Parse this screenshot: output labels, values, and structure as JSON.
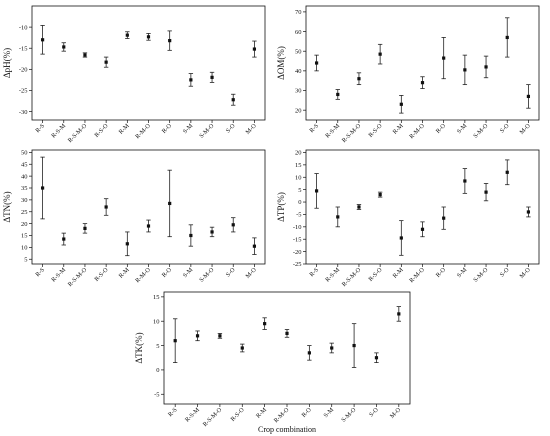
{
  "chart_data": [
    {
      "type": "scatter",
      "ylabel": "ΔpH(%)",
      "xlabel": "",
      "categories": [
        "R-S",
        "R-S-M",
        "R-S-M-O",
        "R-S-O",
        "R-M",
        "R-M-O",
        "R-O",
        "S-M",
        "S-M-O",
        "S-O",
        "M-O"
      ],
      "ylim": [
        -32,
        -5
      ],
      "yticks": [
        -30,
        -25,
        -20,
        -15,
        -10
      ],
      "grid": false,
      "series": [
        {
          "values": [
            -13.0,
            -14.7,
            -16.6,
            -18.3,
            -11.9,
            -12.3,
            -13.2,
            -22.5,
            -21.9,
            -27.2,
            -15.2
          ],
          "err": [
            3.4,
            1.0,
            0.5,
            1.2,
            0.8,
            0.8,
            2.3,
            1.5,
            1.2,
            1.3,
            1.9
          ]
        }
      ]
    },
    {
      "type": "scatter",
      "ylabel": "ΔOM(%)",
      "xlabel": "",
      "categories": [
        "R-S",
        "R-S-M",
        "R-S-M-O",
        "R-S-O",
        "R-M",
        "R-M-O",
        "R-O",
        "S-M",
        "S-M-O",
        "S-O",
        "M-O"
      ],
      "ylim": [
        15,
        73
      ],
      "yticks": [
        20,
        30,
        40,
        50,
        60,
        70
      ],
      "grid": false,
      "series": [
        {
          "values": [
            44.0,
            28.0,
            36.0,
            48.5,
            23.0,
            34.0,
            46.5,
            40.5,
            42.0,
            57.0,
            27.0
          ],
          "err": [
            4.0,
            2.5,
            3.0,
            5.0,
            4.5,
            3.0,
            10.5,
            7.5,
            5.5,
            10.0,
            6.0
          ]
        }
      ]
    },
    {
      "type": "scatter",
      "ylabel": "ΔTN(%)",
      "xlabel": "",
      "categories": [
        "R-S",
        "R-S-M",
        "R-S-M-O",
        "R-S-O",
        "R-M",
        "R-M-O",
        "R-O",
        "S-M",
        "S-M-O",
        "S-O",
        "M-O"
      ],
      "ylim": [
        3,
        51
      ],
      "yticks": [
        5,
        10,
        15,
        20,
        25,
        30,
        35,
        40,
        45,
        50
      ],
      "grid": false,
      "series": [
        {
          "values": [
            35.0,
            13.5,
            18.0,
            27.0,
            11.5,
            19.0,
            28.5,
            15.0,
            16.5,
            19.5,
            10.5
          ],
          "err": [
            13.0,
            2.5,
            2.0,
            3.5,
            5.0,
            2.5,
            14.0,
            4.5,
            2.0,
            3.0,
            3.5
          ]
        }
      ]
    },
    {
      "type": "scatter",
      "ylabel": "ΔTP(%)",
      "xlabel": "",
      "categories": [
        "R-S",
        "R-S-M",
        "R-S-M-O",
        "R-S-O",
        "R-M",
        "R-M-O",
        "R-O",
        "S-M",
        "S-M-O",
        "S-O",
        "M-O"
      ],
      "ylim": [
        -25,
        21
      ],
      "yticks": [
        -25,
        -20,
        -15,
        -10,
        -5,
        0,
        5,
        10,
        15,
        20
      ],
      "grid": false,
      "series": [
        {
          "values": [
            4.5,
            -6.0,
            -2.0,
            3.0,
            -14.5,
            -11.0,
            -6.5,
            8.5,
            4.0,
            12.0,
            -4.0
          ],
          "err": [
            7.0,
            4.0,
            1.0,
            1.0,
            7.0,
            3.0,
            4.5,
            5.0,
            3.5,
            5.0,
            2.0
          ]
        }
      ]
    },
    {
      "type": "scatter",
      "ylabel": "ΔTK(%)",
      "xlabel": "Crop combination",
      "categories": [
        "R-S",
        "R-S-M",
        "R-S-M-O",
        "R-S-O",
        "R-M",
        "R-M-O",
        "R-O",
        "S-M",
        "S-M-O",
        "S-O",
        "M-O"
      ],
      "ylim": [
        -7,
        16
      ],
      "yticks": [
        -5,
        0,
        5,
        10,
        15
      ],
      "grid": false,
      "series": [
        {
          "values": [
            6.0,
            7.0,
            7.0,
            4.5,
            9.5,
            7.5,
            3.5,
            4.5,
            5.0,
            2.5,
            11.5
          ],
          "err": [
            4.5,
            1.0,
            0.5,
            0.8,
            1.2,
            0.8,
            1.5,
            1.0,
            4.5,
            1.0,
            1.5
          ]
        }
      ]
    }
  ]
}
